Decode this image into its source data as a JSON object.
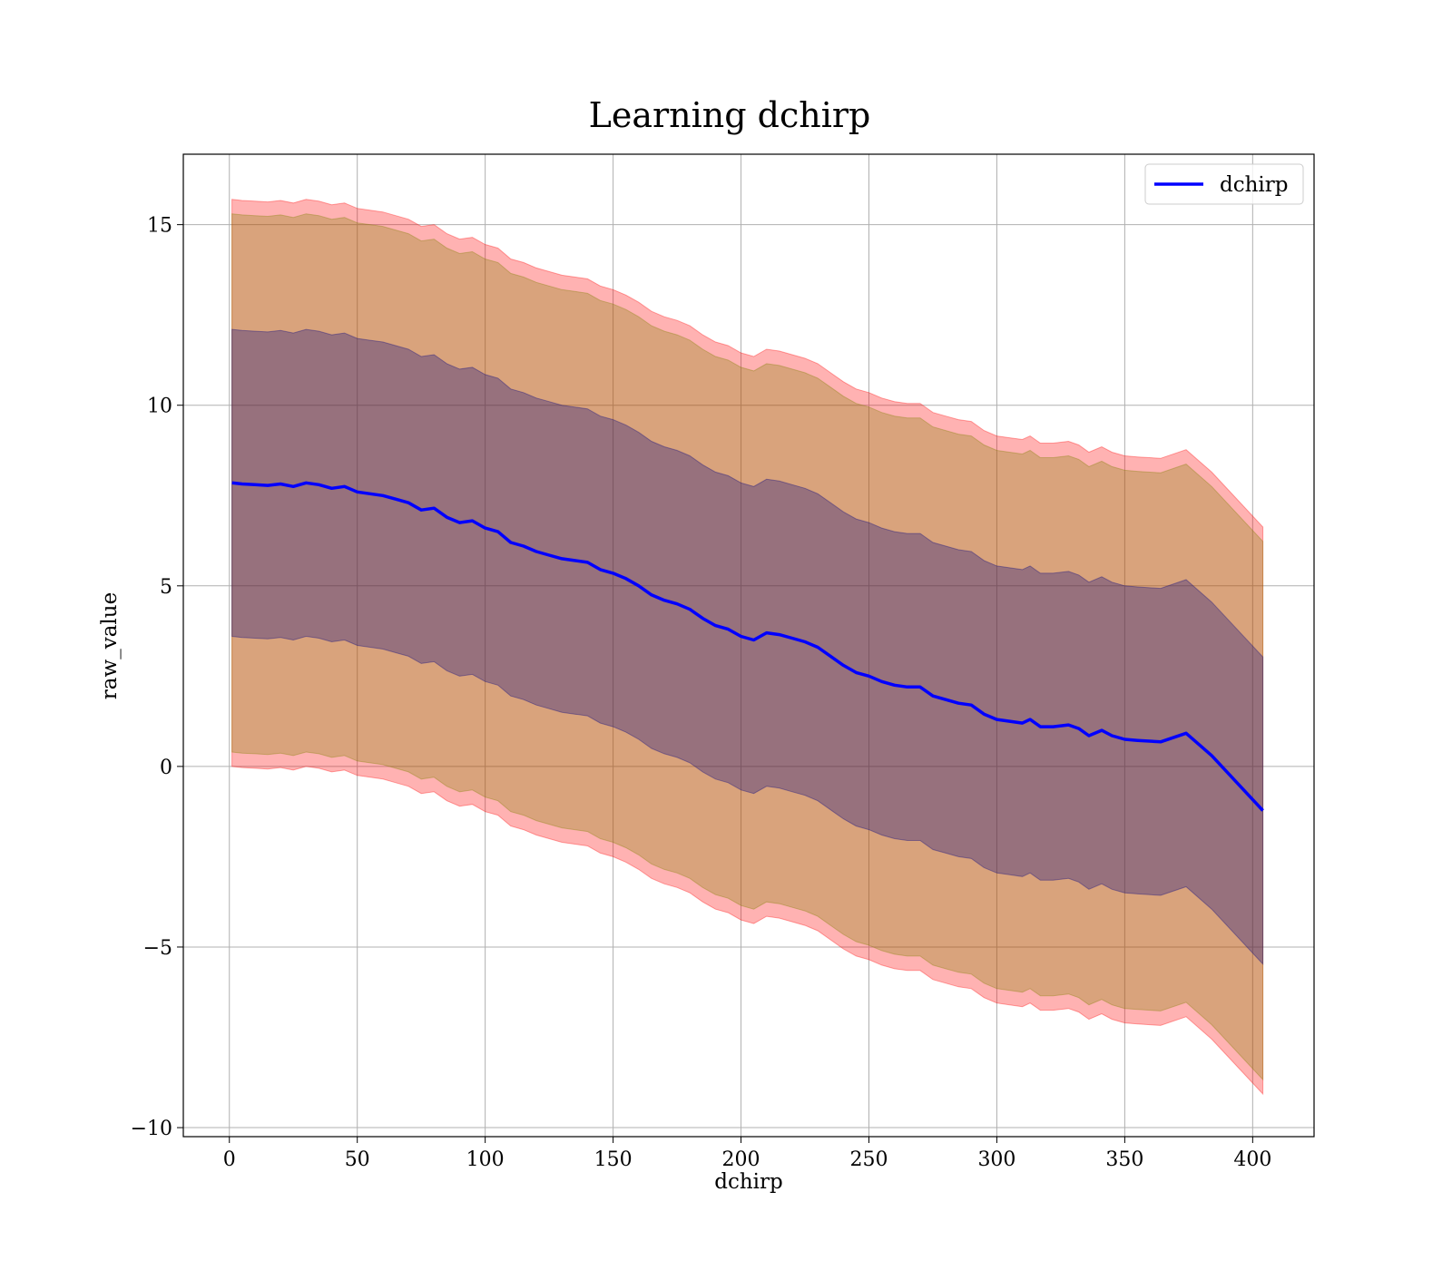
{
  "chart_data": {
    "type": "line",
    "title": "Learning dchirp",
    "xlabel": "dchirp",
    "ylabel": "raw_value",
    "xlim": [
      -18,
      424
    ],
    "ylim": [
      -10.25,
      16.95
    ],
    "xticks": [
      0,
      50,
      100,
      150,
      200,
      250,
      300,
      350,
      400
    ],
    "yticks": [
      -10,
      -5,
      0,
      5,
      10,
      15
    ],
    "xtick_labels": [
      "0",
      "50",
      "100",
      "150",
      "200",
      "250",
      "300",
      "350",
      "400"
    ],
    "ytick_labels": [
      "−10",
      "−5",
      "0",
      "5",
      "10",
      "15"
    ],
    "grid": true,
    "legend_position": "top-right",
    "series": [
      {
        "name": "dchirp",
        "color": "#0000ff",
        "x": [
          1,
          5,
          10,
          15,
          20,
          25,
          30,
          35,
          40,
          45,
          50,
          55,
          60,
          65,
          70,
          75,
          80,
          85,
          90,
          95,
          100,
          105,
          110,
          115,
          120,
          125,
          130,
          135,
          140,
          145,
          150,
          155,
          160,
          165,
          170,
          175,
          180,
          185,
          190,
          195,
          200,
          205,
          210,
          215,
          220,
          225,
          230,
          235,
          240,
          245,
          250,
          255,
          260,
          265,
          270,
          275,
          280,
          285,
          290,
          295,
          300,
          305,
          310,
          313,
          317,
          322,
          328,
          332,
          336,
          341,
          345,
          350,
          355,
          364,
          374,
          384,
          404
        ],
        "y": [
          7.85,
          7.82,
          7.8,
          7.78,
          7.82,
          7.75,
          7.85,
          7.8,
          7.7,
          7.75,
          7.6,
          7.55,
          7.5,
          7.4,
          7.3,
          7.1,
          7.15,
          6.9,
          6.75,
          6.8,
          6.6,
          6.5,
          6.2,
          6.1,
          5.95,
          5.85,
          5.75,
          5.7,
          5.65,
          5.45,
          5.35,
          5.2,
          5.0,
          4.75,
          4.6,
          4.5,
          4.35,
          4.1,
          3.9,
          3.8,
          3.6,
          3.5,
          3.7,
          3.65,
          3.55,
          3.45,
          3.3,
          3.05,
          2.8,
          2.6,
          2.5,
          2.35,
          2.25,
          2.2,
          2.2,
          1.95,
          1.85,
          1.75,
          1.7,
          1.45,
          1.3,
          1.25,
          1.2,
          1.3,
          1.1,
          1.1,
          1.15,
          1.05,
          0.85,
          1.0,
          0.85,
          0.75,
          0.72,
          0.68,
          0.92,
          0.3,
          -1.22
        ]
      }
    ],
    "bands": [
      {
        "color": "#ff0000",
        "opacity": 0.3,
        "upper_offset": 7.85,
        "lower_offset": -7.85
      },
      {
        "color": "#808000",
        "opacity": 0.3,
        "upper_offset": 7.45,
        "lower_offset": -7.45
      },
      {
        "color": "#000080",
        "opacity": 0.3,
        "upper_offset": 4.25,
        "lower_offset": -4.25
      }
    ]
  }
}
